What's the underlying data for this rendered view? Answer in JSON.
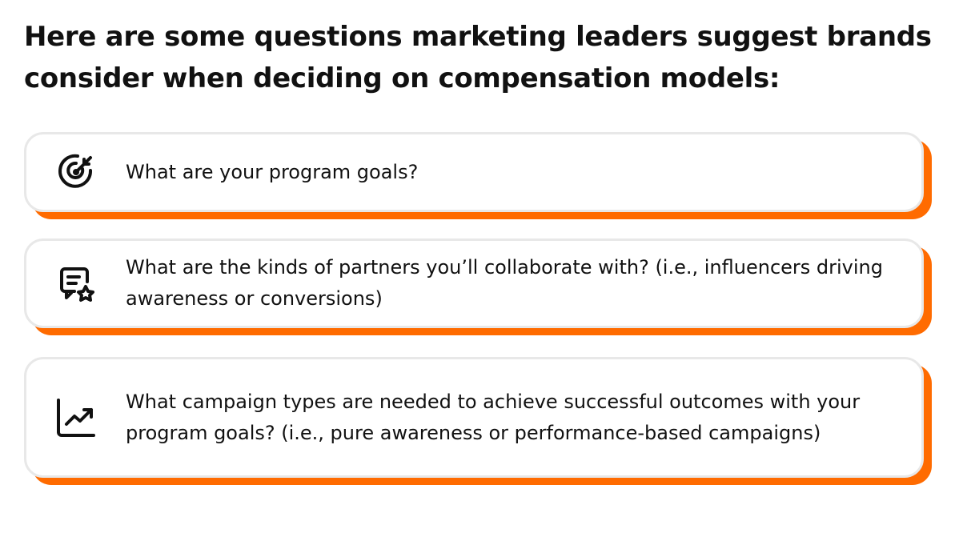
{
  "title": "Here are some questions marketing leaders suggest brands consider when deciding on compensation models:",
  "accent_color": "#ff6b00",
  "questions": [
    {
      "icon": "target-arrow-icon",
      "text": "What are your program goals?"
    },
    {
      "icon": "message-star-icon",
      "text": "What are the kinds of partners you’ll collaborate with? (i.e., influencers driving awareness or conversions)"
    },
    {
      "icon": "trending-up-chart-icon",
      "text": "What campaign types are needed to achieve successful outcomes with your program goals? (i.e., pure awareness or performance-based campaigns)"
    }
  ]
}
